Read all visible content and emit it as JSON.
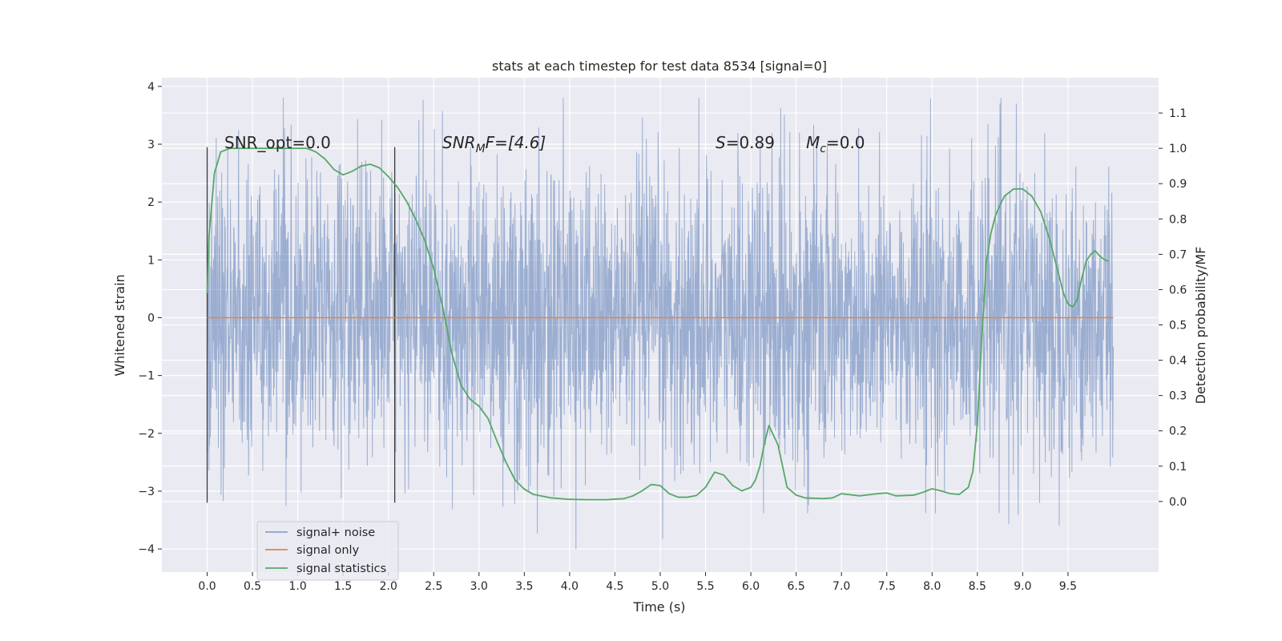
{
  "chart_data": {
    "type": "line",
    "title": "stats at each timestep for test data 8534 [signal=0]",
    "xlabel": "Time (s)",
    "ylabel": "Whitened strain",
    "ylabel_right": "Detection probability/MF",
    "xlim": [
      -0.5,
      10.5
    ],
    "ylim": [
      -4.4,
      4.15
    ],
    "ylim_right": [
      -0.2,
      1.2
    ],
    "x_ticks": [
      0.0,
      0.5,
      1.0,
      1.5,
      2.0,
      2.5,
      3.0,
      3.5,
      4.0,
      4.5,
      5.0,
      5.5,
      6.0,
      6.5,
      7.0,
      7.5,
      8.0,
      8.5,
      9.0,
      9.5
    ],
    "x_tick_labels": [
      "0.0",
      "0.5",
      "1.0",
      "1.5",
      "2.0",
      "2.5",
      "3.0",
      "3.5",
      "4.0",
      "4.5",
      "5.0",
      "5.5",
      "6.0",
      "6.5",
      "7.0",
      "7.5",
      "8.0",
      "8.5",
      "9.0",
      "9.5"
    ],
    "y_ticks": [
      -4,
      -3,
      -2,
      -1,
      0,
      1,
      2,
      3,
      4
    ],
    "y_tick_labels": [
      "−4",
      "−3",
      "−2",
      "−1",
      "0",
      "1",
      "2",
      "3",
      "4"
    ],
    "y_ticks_right": [
      0.0,
      0.1,
      0.2,
      0.3,
      0.4,
      0.5,
      0.6,
      0.7,
      0.8,
      0.9,
      1.0,
      1.1
    ],
    "y_tick_labels_right": [
      "0.0",
      "0.1",
      "0.2",
      "0.3",
      "0.4",
      "0.5",
      "0.6",
      "0.7",
      "0.8",
      "0.9",
      "1.0",
      "1.1"
    ],
    "grid": true,
    "legend_position": "bottom-left",
    "annotations": {
      "snr_opt": "SNR_opt=0.0",
      "snr_mf_main": "SNR",
      "snr_mf_sub": "M",
      "snr_mf_rest": "F=[4.6]",
      "s_main": "S",
      "s_rest": "=0.89",
      "mc_main": "M",
      "mc_sub": "c",
      "mc_rest": "=0.0"
    },
    "vertical_lines": [
      {
        "x": 0.0,
        "y_range": [
          -3.2,
          2.95
        ]
      },
      {
        "x": 2.07,
        "y_range": [
          -3.2,
          2.95
        ]
      }
    ],
    "series": [
      {
        "name": "signal+ noise",
        "color": "#4c72b0",
        "kind": "noise",
        "x_range": [
          0.0,
          10.0
        ],
        "typical_amplitude": 1.5,
        "min": -4.05,
        "max": 3.8
      },
      {
        "name": "signal only",
        "color": "#dd8452",
        "x": [
          0.0,
          10.0
        ],
        "values": [
          0.0,
          0.0
        ]
      },
      {
        "name": "signal statistics",
        "color": "#55a868",
        "axis": "right",
        "x": [
          0.0,
          0.02,
          0.08,
          0.15,
          0.25,
          0.4,
          0.6,
          0.8,
          1.0,
          1.1,
          1.2,
          1.3,
          1.4,
          1.5,
          1.6,
          1.7,
          1.8,
          1.9,
          2.0,
          2.1,
          2.2,
          2.3,
          2.4,
          2.5,
          2.6,
          2.7,
          2.8,
          2.9,
          3.0,
          3.1,
          3.2,
          3.3,
          3.4,
          3.5,
          3.6,
          3.8,
          4.0,
          4.2,
          4.4,
          4.6,
          4.7,
          4.8,
          4.9,
          5.0,
          5.1,
          5.2,
          5.3,
          5.4,
          5.5,
          5.6,
          5.7,
          5.8,
          5.9,
          6.0,
          6.05,
          6.1,
          6.15,
          6.2,
          6.3,
          6.4,
          6.5,
          6.6,
          6.8,
          6.9,
          7.0,
          7.2,
          7.4,
          7.5,
          7.6,
          7.8,
          7.9,
          8.0,
          8.1,
          8.2,
          8.3,
          8.4,
          8.45,
          8.5,
          8.55,
          8.6,
          8.65,
          8.7,
          8.75,
          8.8,
          8.9,
          9.0,
          9.1,
          9.2,
          9.3,
          9.4,
          9.45,
          9.5,
          9.55,
          9.6,
          9.65,
          9.7,
          9.75,
          9.8,
          9.85,
          9.9,
          9.95
        ],
        "values": [
          0.59,
          0.75,
          0.93,
          0.99,
          1.0,
          1.0,
          1.0,
          1.0,
          1.0,
          1.0,
          0.99,
          0.97,
          0.94,
          0.925,
          0.935,
          0.95,
          0.955,
          0.945,
          0.92,
          0.89,
          0.85,
          0.8,
          0.74,
          0.66,
          0.55,
          0.42,
          0.33,
          0.29,
          0.27,
          0.235,
          0.17,
          0.11,
          0.06,
          0.035,
          0.02,
          0.01,
          0.006,
          0.005,
          0.005,
          0.008,
          0.016,
          0.03,
          0.048,
          0.045,
          0.022,
          0.012,
          0.012,
          0.017,
          0.04,
          0.083,
          0.075,
          0.045,
          0.03,
          0.04,
          0.06,
          0.1,
          0.165,
          0.215,
          0.16,
          0.04,
          0.018,
          0.01,
          0.008,
          0.01,
          0.022,
          0.016,
          0.022,
          0.024,
          0.016,
          0.018,
          0.026,
          0.036,
          0.03,
          0.022,
          0.02,
          0.04,
          0.085,
          0.22,
          0.47,
          0.68,
          0.76,
          0.81,
          0.84,
          0.865,
          0.885,
          0.885,
          0.865,
          0.82,
          0.74,
          0.64,
          0.59,
          0.56,
          0.55,
          0.57,
          0.63,
          0.68,
          0.7,
          0.71,
          0.695,
          0.685,
          0.68
        ]
      }
    ]
  }
}
